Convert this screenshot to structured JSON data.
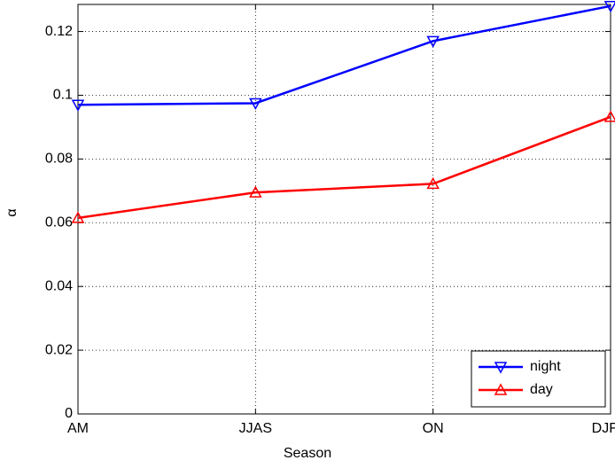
{
  "chart_data": {
    "type": "line",
    "x_label": "Season",
    "y_label": "α",
    "categories": [
      "AM",
      "JJAS",
      "ON",
      "DJFM"
    ],
    "series": [
      {
        "name": "night",
        "color": "#0000ff",
        "marker": "triangle-down",
        "values": [
          0.097,
          0.0975,
          0.117,
          0.128
        ]
      },
      {
        "name": "day",
        "color": "#ff0000",
        "marker": "triangle-up",
        "values": [
          0.0615,
          0.0695,
          0.0722,
          0.0932
        ]
      }
    ],
    "ylim": [
      0,
      0.1285
    ],
    "yticks": [
      0,
      0.02,
      0.04,
      0.06,
      0.08,
      0.1,
      0.12
    ],
    "grid": true,
    "legend": "lower right"
  }
}
